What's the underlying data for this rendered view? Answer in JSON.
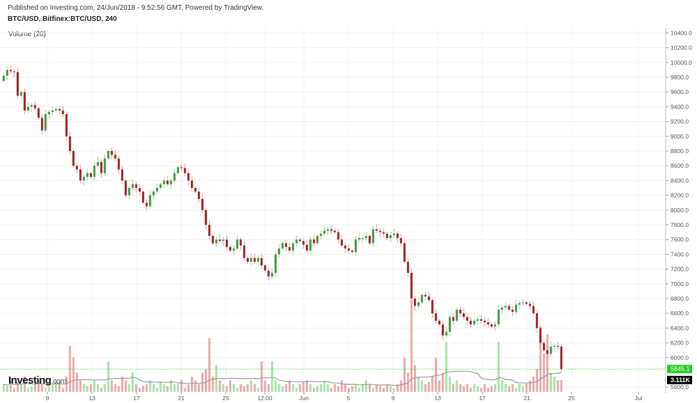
{
  "header": {
    "published": "Published on Investing.com, 24/Jun/2018 - 9:52:56 GMT, Powered by TradingView.",
    "symbol": "BTC/USD, Bitfinex:BTC/USD, 240",
    "volume_legend": "Volume (20)"
  },
  "logo": {
    "text": "Investing",
    "suffix": ".com"
  },
  "colors": {
    "up": "#3c9a3c",
    "down": "#a31f1f",
    "vol_up": "#a6e3a6",
    "vol_down": "#eaa8a8",
    "ma": "#9a9a9a",
    "last_price": "#22cc22",
    "last_volume_bg": "#000000"
  },
  "chart_data": {
    "type": "candlestick",
    "title": "BTC/USD, Bitfinex:BTC/USD, 240",
    "ylim": [
      5600,
      10400
    ],
    "y_ticks": [
      "10400.0",
      "10200.0",
      "10000.0",
      "9800.0",
      "9600.0",
      "9400.0",
      "9200.0",
      "9000.0",
      "8800.0",
      "8600.0",
      "8400.0",
      "8200.0",
      "8000.0",
      "7800.0",
      "7600.0",
      "7400.0",
      "7200.0",
      "7000.0",
      "6800.0",
      "6600.0",
      "6400.0",
      "6200.0",
      "6000.0",
      "5600.0"
    ],
    "x_range": [
      "2018-05-04",
      "2018-07-03"
    ],
    "x_ticks": [
      {
        "label": "9",
        "date": "2018-05-09"
      },
      {
        "label": "13",
        "date": "2018-05-13"
      },
      {
        "label": "17",
        "date": "2018-05-17"
      },
      {
        "label": "21",
        "date": "2018-05-21"
      },
      {
        "label": "25",
        "date": "2018-05-25"
      },
      {
        "label": "12:00",
        "date": "2018-05-28T12:00"
      },
      {
        "label": "Jun",
        "date": "2018-06-01"
      },
      {
        "label": "5",
        "date": "2018-06-05"
      },
      {
        "label": "9",
        "date": "2018-06-09"
      },
      {
        "label": "13",
        "date": "2018-06-13"
      },
      {
        "label": "17",
        "date": "2018-06-17"
      },
      {
        "label": "21",
        "date": "2018-06-21"
      },
      {
        "label": "25",
        "date": "2018-06-25"
      },
      {
        "label": "Jul",
        "date": "2018-07-01"
      }
    ],
    "period": [
      "2018-05-05",
      "2018-06-24"
    ],
    "closes": [
      9820,
      9900,
      9880,
      9870,
      9550,
      9600,
      9350,
      9400,
      9420,
      9380,
      9250,
      9080,
      9300,
      9330,
      9350,
      9370,
      9350,
      9300,
      9000,
      8800,
      8600,
      8550,
      8400,
      8450,
      8500,
      8450,
      8600,
      8650,
      8500,
      8700,
      8800,
      8750,
      8700,
      8550,
      8400,
      8200,
      8300,
      8350,
      8300,
      8250,
      8100,
      8050,
      8200,
      8250,
      8300,
      8350,
      8400,
      8350,
      8400,
      8500,
      8580,
      8570,
      8500,
      8400,
      8300,
      8250,
      8150,
      8000,
      7800,
      7650,
      7550,
      7600,
      7580,
      7600,
      7500,
      7450,
      7480,
      7600,
      7520,
      7350,
      7300,
      7350,
      7300,
      7350,
      7250,
      7180,
      7100,
      7150,
      7400,
      7480,
      7550,
      7500,
      7450,
      7550,
      7600,
      7580,
      7530,
      7450,
      7600,
      7550,
      7650,
      7680,
      7720,
      7740,
      7720,
      7700,
      7600,
      7520,
      7480,
      7450,
      7430,
      7600,
      7620,
      7620,
      7650,
      7550,
      7740,
      7720,
      7700,
      7680,
      7620,
      7660,
      7680,
      7620,
      7550,
      7300,
      7150,
      6800,
      6700,
      6750,
      6850,
      6830,
      6780,
      6600,
      6500,
      6450,
      6300,
      6350,
      6550,
      6500,
      6650,
      6600,
      6550,
      6500,
      6450,
      6500,
      6520,
      6500,
      6480,
      6450,
      6420,
      6450,
      6650,
      6680,
      6700,
      6650,
      6620,
      6720,
      6740,
      6750,
      6730,
      6700,
      6600,
      6400,
      6200,
      6100,
      6050,
      6150,
      6160,
      6150,
      5845
    ],
    "first_open": 9750,
    "volume_k": [
      2,
      1.5,
      3,
      1,
      2.5,
      2,
      4,
      1,
      1.5,
      2,
      3,
      2,
      1,
      1.5,
      2,
      3,
      2.5,
      1,
      4,
      12,
      9,
      5,
      3,
      2,
      1.5,
      2,
      3,
      2,
      1,
      2,
      8,
      3,
      2,
      1.5,
      4,
      3,
      2,
      5,
      2,
      1,
      1.5,
      2,
      3,
      2,
      1,
      2.5,
      2,
      1.5,
      3,
      2,
      2,
      3,
      1,
      2,
      4,
      3,
      2,
      5,
      6,
      14,
      4,
      7,
      3,
      2,
      1.5,
      3,
      2,
      1,
      2,
      1.5,
      2,
      3,
      2,
      1,
      8,
      3,
      2,
      8,
      3,
      2,
      1.5,
      2,
      3,
      2,
      1,
      2,
      2.5,
      3,
      2,
      1,
      1.5,
      2,
      3,
      2,
      1,
      2,
      1.5,
      3,
      2,
      1,
      1.5,
      2,
      1,
      2,
      3,
      2,
      1,
      2,
      1.5,
      1,
      2,
      1.5,
      1,
      2,
      3,
      9,
      5,
      24,
      7,
      4,
      3,
      2,
      2.5,
      4,
      9,
      3,
      5,
      13,
      4,
      2,
      3,
      2,
      1.5,
      2,
      1,
      2,
      1.5,
      1,
      2,
      1,
      1.5,
      2,
      13,
      3,
      2,
      1.5,
      2,
      1,
      2,
      1.5,
      2,
      3,
      4,
      6,
      17,
      10,
      15,
      5,
      4,
      3,
      3.111
    ],
    "volume_ma_period": 20,
    "last_price": "5845.1",
    "last_volume": "3.111K",
    "grid": true
  }
}
